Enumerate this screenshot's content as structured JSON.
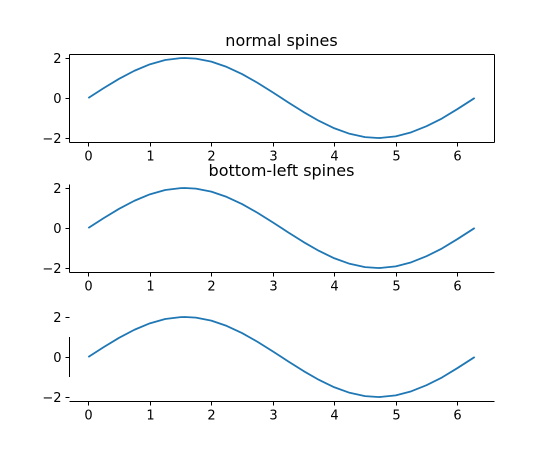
{
  "chart_data": [
    {
      "type": "line",
      "title": "normal spines",
      "spines": "all",
      "xlim": [
        -0.3142,
        6.5973
      ],
      "ylim": [
        -2.2,
        2.2
      ],
      "x_ticks": [
        0,
        1,
        2,
        3,
        4,
        5,
        6
      ],
      "y_ticks": [
        2,
        0,
        -2
      ],
      "y_tick_labels": [
        "2",
        "0",
        "−2"
      ],
      "series": [
        {
          "color": "#1f77b4",
          "x": [
            0,
            0.25,
            0.5,
            0.75,
            1.0,
            1.25,
            1.5,
            1.5708,
            1.75,
            2.0,
            2.25,
            2.5,
            2.75,
            3.0,
            3.1416,
            3.25,
            3.5,
            3.75,
            4.0,
            4.25,
            4.5,
            4.7124,
            4.75,
            5.0,
            5.25,
            5.5,
            5.75,
            6.0,
            6.25,
            6.2832
          ],
          "y": [
            0,
            0.495,
            0.959,
            1.363,
            1.683,
            1.898,
            1.995,
            2.0,
            1.968,
            1.819,
            1.556,
            1.197,
            0.763,
            0.282,
            0,
            -0.217,
            -0.702,
            -1.143,
            -1.514,
            -1.79,
            -1.955,
            -2.0,
            -1.998,
            -1.918,
            -1.716,
            -1.411,
            -1.026,
            -0.559,
            -0.066,
            0
          ]
        }
      ]
    },
    {
      "type": "line",
      "title": "bottom-left spines",
      "spines": "bottom-left",
      "xlim": [
        -0.3142,
        6.5973
      ],
      "ylim": [
        -2.2,
        2.2
      ],
      "x_ticks": [
        0,
        1,
        2,
        3,
        4,
        5,
        6
      ],
      "y_ticks": [
        2,
        0,
        -2
      ],
      "y_tick_labels": [
        "2",
        "0",
        "−2"
      ],
      "series": [
        {
          "color": "#1f77b4",
          "x": [
            0,
            0.25,
            0.5,
            0.75,
            1.0,
            1.25,
            1.5,
            1.5708,
            1.75,
            2.0,
            2.25,
            2.5,
            2.75,
            3.0,
            3.1416,
            3.25,
            3.5,
            3.75,
            4.0,
            4.25,
            4.5,
            4.7124,
            4.75,
            5.0,
            5.25,
            5.5,
            5.75,
            6.0,
            6.25,
            6.2832
          ],
          "y": [
            0,
            0.495,
            0.959,
            1.363,
            1.683,
            1.898,
            1.995,
            2.0,
            1.968,
            1.819,
            1.556,
            1.197,
            0.763,
            0.282,
            0,
            -0.217,
            -0.702,
            -1.143,
            -1.514,
            -1.79,
            -1.955,
            -2.0,
            -1.998,
            -1.918,
            -1.716,
            -1.411,
            -1.026,
            -0.559,
            -0.066,
            0
          ]
        }
      ]
    },
    {
      "type": "line",
      "title": "",
      "spines": "bottom-left-partial",
      "left_spine_range": [
        -1,
        1
      ],
      "xlim": [
        -0.3142,
        6.5973
      ],
      "ylim": [
        -2.2,
        2.2
      ],
      "x_ticks": [
        0,
        1,
        2,
        3,
        4,
        5,
        6
      ],
      "y_ticks": [
        2,
        0,
        -2
      ],
      "y_tick_labels": [
        "2",
        "0",
        "−2"
      ],
      "series": [
        {
          "color": "#1f77b4",
          "x": [
            0,
            0.25,
            0.5,
            0.75,
            1.0,
            1.25,
            1.5,
            1.5708,
            1.75,
            2.0,
            2.25,
            2.5,
            2.75,
            3.0,
            3.1416,
            3.25,
            3.5,
            3.75,
            4.0,
            4.25,
            4.5,
            4.7124,
            4.75,
            5.0,
            5.25,
            5.5,
            5.75,
            6.0,
            6.25,
            6.2832
          ],
          "y": [
            0,
            0.495,
            0.959,
            1.363,
            1.683,
            1.898,
            1.995,
            2.0,
            1.968,
            1.819,
            1.556,
            1.197,
            0.763,
            0.282,
            0,
            -0.217,
            -0.702,
            -1.143,
            -1.514,
            -1.79,
            -1.955,
            -2.0,
            -1.998,
            -1.918,
            -1.716,
            -1.411,
            -1.026,
            -0.559,
            -0.066,
            0
          ]
        }
      ]
    }
  ]
}
